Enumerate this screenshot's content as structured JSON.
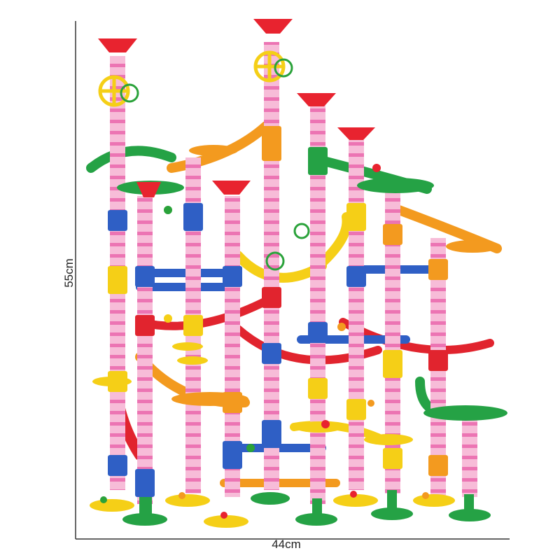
{
  "image": {
    "subject": "marble-run-toy-set",
    "colors": {
      "tube": "#f8b5d4",
      "tube_stripe": "#e95aa4",
      "funnel": "#e8232f",
      "yellow": "#f5cf17",
      "green": "#25a245",
      "blue": "#2f5fc5",
      "orange": "#f39a1f",
      "red": "#e1242e",
      "dimension_line": "#333333"
    }
  },
  "dimensions": {
    "width_label": "44cm",
    "height_label": "55cm"
  }
}
